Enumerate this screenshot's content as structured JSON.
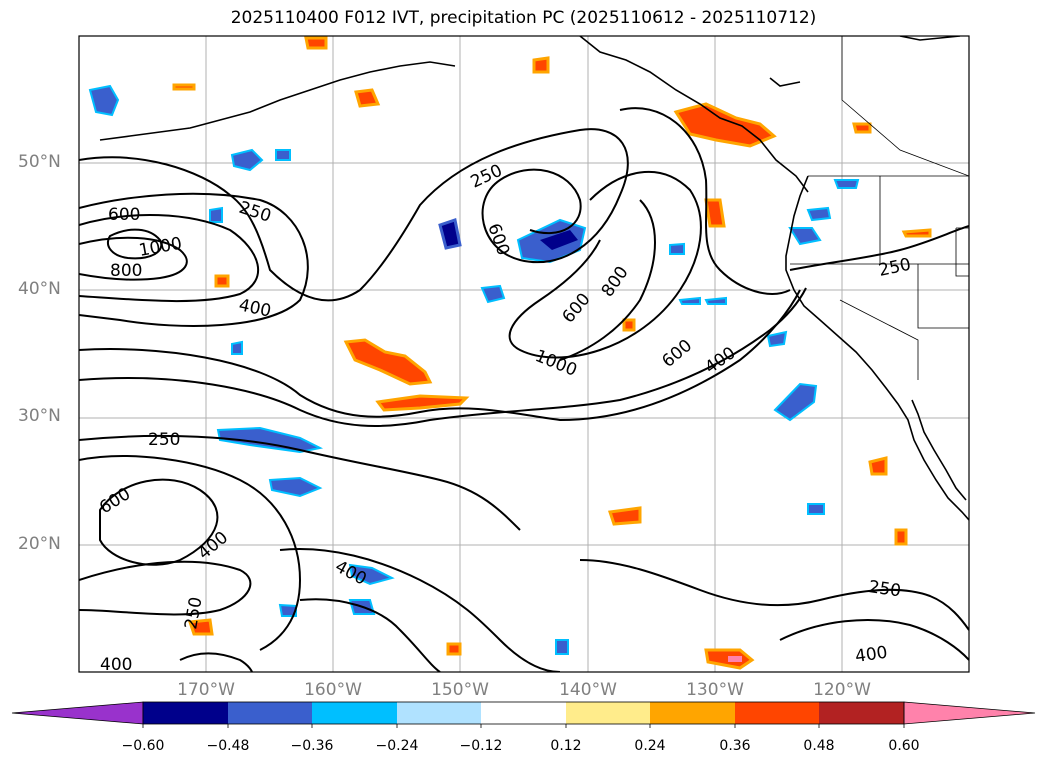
{
  "title": "2025110400 F012 IVT, precipitation PC (2025110612 - 2025110712)",
  "lat_labels": [
    "50°N",
    "40°N",
    "30°N",
    "20°N"
  ],
  "lon_labels": [
    "170°W",
    "160°W",
    "150°W",
    "140°W",
    "130°W",
    "120°W"
  ],
  "colorbar": {
    "ticks": [
      "−0.60",
      "−0.48",
      "−0.36",
      "−0.24",
      "−0.12",
      "0.12",
      "0.24",
      "0.36",
      "0.48",
      "0.60"
    ],
    "colors": [
      "#9932CC",
      "#00008B",
      "#3A5FCD",
      "#00BFFF",
      "#B0E2FF",
      "#FFFFFF",
      "#FFEC8B",
      "#FFA500",
      "#FF4500",
      "#B22222",
      "#FF82AB"
    ]
  },
  "contour_labels": [
    "250",
    "250",
    "600",
    "1000",
    "800",
    "400",
    "250",
    "600",
    "400",
    "250",
    "400",
    "250",
    "400",
    "250",
    "400",
    "600",
    "800",
    "600",
    "1000",
    "400",
    "600"
  ]
}
